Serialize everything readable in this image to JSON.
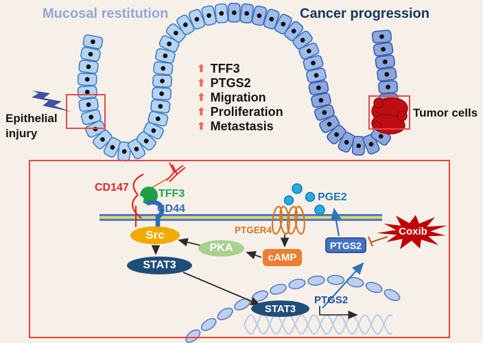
{
  "figure": {
    "titles": {
      "left": "Mucosal restitution",
      "right": "Cancer progression"
    },
    "annotations": {
      "injury": {
        "line1": "Epithelial",
        "line2": "injury"
      },
      "tumor": "Tumor cells"
    },
    "upregulated": {
      "arrow_icon": "⬆",
      "items": [
        "TFF3",
        "PTGS2",
        "Migration",
        "Proliferation",
        "Metastasis"
      ]
    },
    "pathway": {
      "receptor_complex": {
        "cd147": "CD147",
        "tff3": "TFF3",
        "cd44": "CD44"
      },
      "membrane_receptor": "PTGER4",
      "ligand": "PGE2",
      "nodes": {
        "src": "Src",
        "stat3": "STAT3",
        "pka": "PKA",
        "camp": "cAMP",
        "ptgs2": "PTGS2",
        "coxib": "Coxib"
      },
      "nucleus": {
        "stat3": "STAT3",
        "gene": "PTGS2"
      }
    },
    "colors": {
      "background": "#f6f0e9",
      "up_arrow": "#f4655c",
      "highlight_box": "#e8433c",
      "membrane_blue": "#4a7cc7",
      "membrane_core": "#e6d06c",
      "tumor": "#bf0d12",
      "pge2_dot": "#29abe2",
      "coxib_burst": "#c00000",
      "nucleus_bead": "#bdd0f2"
    }
  }
}
